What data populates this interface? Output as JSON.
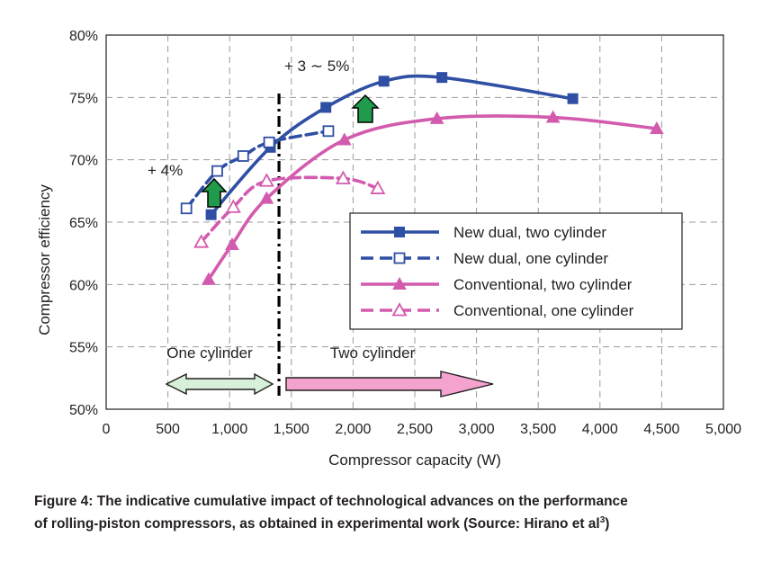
{
  "chart_data": {
    "type": "line",
    "xlabel": "Compressor capacity (W)",
    "ylabel": "Compressor efficiency",
    "xlim": [
      0,
      5000
    ],
    "ylim": [
      50,
      80
    ],
    "x_ticks": [
      "0",
      "500",
      "1,000",
      "1,500",
      "2,000",
      "2,500",
      "3,000",
      "3,500",
      "4,000",
      "4,500",
      "5,000"
    ],
    "y_ticks": [
      "50%",
      "55%",
      "60%",
      "65%",
      "70%",
      "75%",
      "80%"
    ],
    "grid": true,
    "legend_position": "center-right",
    "series": [
      {
        "name": "New dual, two cylinder",
        "color": "#2e4fa3",
        "line": "solid",
        "marker": "filled-square",
        "x": [
          850,
          1330,
          1780,
          2250,
          2720,
          3780
        ],
        "y": [
          65.6,
          71.0,
          74.2,
          76.3,
          76.6,
          74.9
        ]
      },
      {
        "name": "New dual, one cylinder",
        "color": "#2e4fa3",
        "line": "dashed",
        "marker": "open-square",
        "x": [
          650,
          900,
          1110,
          1320,
          1800
        ],
        "y": [
          66.1,
          69.1,
          70.3,
          71.4,
          72.3
        ]
      },
      {
        "name": "Conventional, two cylinder",
        "color": "#d35bae",
        "line": "solid",
        "marker": "filled-triangle",
        "x": [
          830,
          1020,
          1300,
          1930,
          2680,
          3620,
          4460
        ],
        "y": [
          60.4,
          63.2,
          66.9,
          71.6,
          73.3,
          73.4,
          72.5
        ]
      },
      {
        "name": "Conventional, one cylinder",
        "color": "#d35bae",
        "line": "dashed",
        "marker": "open-triangle",
        "x": [
          770,
          1030,
          1300,
          1920,
          2200
        ],
        "y": [
          63.4,
          66.2,
          68.3,
          68.5,
          67.7
        ]
      }
    ],
    "annotations": {
      "plus_four": "+ 4%",
      "plus_three_five": "+ 3 ∼ 5%",
      "one_cylinder": "One cylinder",
      "two_cylinder": "Two cylinder"
    },
    "divider_x": 1400
  },
  "caption": {
    "line1": "Figure 4: The indicative cumulative impact of technological advances on the performance",
    "line2_main": "of rolling-piston compressors, as obtained in experimental work (Source: Hirano et al",
    "line2_sup": "3",
    "line2_end": ")"
  },
  "colors": {
    "blue": "#2e4fa3",
    "pink": "#d35bae",
    "green_arrow": "#1f9b4b",
    "light_green": "#d7f0d9",
    "light_pink": "#f3a3cd"
  }
}
